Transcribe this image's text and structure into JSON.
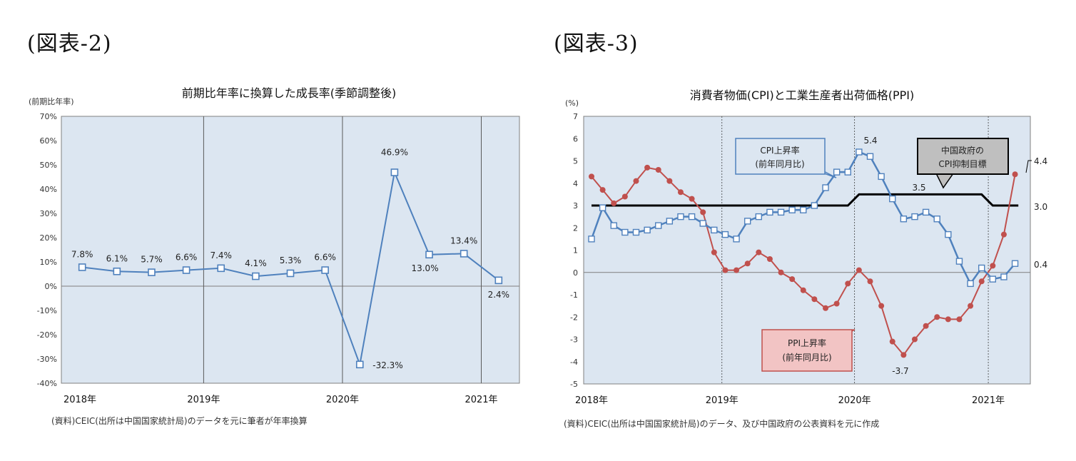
{
  "left_label": "(図表-2)",
  "right_label": "(図表-3)",
  "chart_data": [
    {
      "type": "line",
      "title": "前期比年率に換算した成長率(季節調整後)",
      "ylabel": "(前期比年率)",
      "ylim": [
        -40,
        70
      ],
      "yticks": [
        "70%",
        "60%",
        "50%",
        "40%",
        "30%",
        "20%",
        "10%",
        "0%",
        "-10%",
        "-20%",
        "-30%",
        "-40%"
      ],
      "year_labels": [
        "2018年",
        "2019年",
        "2020年",
        "2021年"
      ],
      "values": [
        7.8,
        6.1,
        5.7,
        6.6,
        7.4,
        4.1,
        5.3,
        6.6,
        -32.3,
        46.9,
        13.0,
        13.4,
        2.4
      ],
      "labels": [
        "7.8%",
        "6.1%",
        "5.7%",
        "6.6%",
        "7.4%",
        "4.1%",
        "5.3%",
        "6.6%",
        "-32.3%",
        "46.9%",
        "13.0%",
        "13.4%",
        "2.4%"
      ],
      "series_color": "#4f81bd",
      "plot_bg": "#dce6f1",
      "source": "(資料)CEIC(出所は中国国家統計局)のデータを元に筆者が年率換算"
    },
    {
      "type": "line",
      "title": "消費者物価(CPI)と工業生産者出荷価格(PPI)",
      "ylabel": "(%)",
      "ylim": [
        -5,
        7
      ],
      "yticks": [
        "7",
        "6",
        "5",
        "4",
        "3",
        "2",
        "1",
        "0",
        "-1",
        "-2",
        "-3",
        "-4",
        "-5"
      ],
      "year_labels": [
        "2018年",
        "2019年",
        "2020年",
        "2021年"
      ],
      "series": [
        {
          "name": "CPI上昇率(前年同月比)",
          "color": "#4f81bd",
          "values": [
            1.5,
            2.9,
            2.1,
            1.8,
            1.8,
            1.9,
            2.1,
            2.3,
            2.5,
            2.5,
            2.2,
            1.9,
            1.7,
            1.5,
            2.3,
            2.5,
            2.7,
            2.7,
            2.8,
            2.8,
            3.0,
            3.8,
            4.5,
            4.5,
            5.4,
            5.2,
            4.3,
            3.3,
            2.4,
            2.5,
            2.7,
            2.4,
            1.7,
            0.5,
            -0.5,
            0.2,
            -0.3,
            -0.2,
            0.4
          ]
        },
        {
          "name": "PPI上昇率(前年同月比)",
          "color": "#c0504d",
          "values": [
            4.3,
            3.7,
            3.1,
            3.4,
            4.1,
            4.7,
            4.6,
            4.1,
            3.6,
            3.3,
            2.7,
            0.9,
            0.1,
            0.1,
            0.4,
            0.9,
            0.6,
            0.0,
            -0.3,
            -0.8,
            -1.2,
            -1.6,
            -1.4,
            -0.5,
            0.1,
            -0.4,
            -1.5,
            -3.1,
            -3.7,
            -3.0,
            -2.4,
            -2.0,
            -2.1,
            -2.1,
            -1.5,
            -0.4,
            0.3,
            1.7,
            4.4
          ]
        },
        {
          "name": "中国政府のCPI抑制目標",
          "color": "#000000",
          "values": [
            3.0,
            3.5,
            3.0
          ]
        }
      ],
      "annotations": [
        "5.4",
        "4.4",
        "3.5",
        "3.0",
        "0.4",
        "-3.7"
      ],
      "callouts": {
        "cpi": [
          "CPI上昇率",
          "(前年同月比)"
        ],
        "ppi": [
          "PPI上昇率",
          "(前年同月比)"
        ],
        "target": [
          "中国政府の",
          "CPI抑制目標"
        ]
      },
      "plot_bg": "#dce6f1",
      "source": "(資料)CEIC(出所は中国国家統計局)のデータ、及び中国政府の公表資料を元に作成"
    }
  ]
}
